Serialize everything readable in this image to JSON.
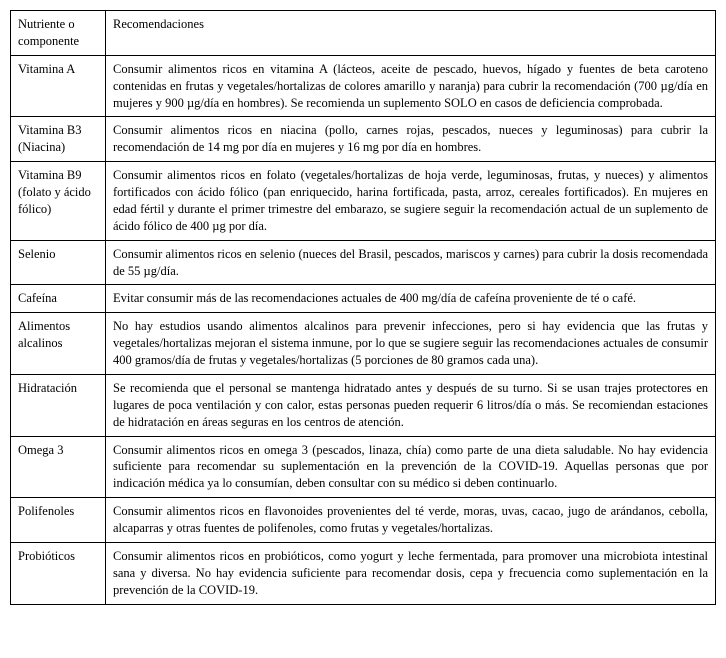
{
  "table": {
    "header": {
      "col1": "Nutriente o componente",
      "col2": "Recomendaciones"
    },
    "rows": [
      {
        "col1": "Vitamina A",
        "col2": "Consumir alimentos ricos en vitamina A (lácteos, aceite de pescado, huevos, hígado y fuentes de beta caroteno contenidas en frutas y vegetales/hortalizas de colores amarillo y naranja) para cubrir la recomendación (700 µg/día en mujeres y 900 µg/día en hombres). Se recomienda un suplemento SOLO en casos de deficiencia comprobada."
      },
      {
        "col1": "Vitamina B3 (Niacina)",
        "col2": "Consumir alimentos ricos en niacina (pollo, carnes rojas, pescados, nueces y leguminosas) para cubrir la recomendación de 14 mg por día en mujeres y 16 mg por día en hombres."
      },
      {
        "col1": "Vitamina B9 (folato y ácido fólico)",
        "col2": "Consumir alimentos ricos en folato (vegetales/hortalizas de hoja verde, leguminosas, frutas, y nueces) y alimentos fortificados con ácido fólico (pan enriquecido, harina fortificada, pasta, arroz, cereales fortificados). En mujeres en edad fértil y durante el primer trimestre del embarazo, se sugiere seguir la recomendación actual de un suplemento de ácido fólico de 400 µg por día."
      },
      {
        "col1": "Selenio",
        "col2": "Consumir alimentos ricos en selenio (nueces del Brasil, pescados, mariscos y carnes) para cubrir la dosis recomendada de 55 µg/día."
      },
      {
        "col1": "Cafeína",
        "col2": "Evitar consumir más de las recomendaciones actuales de 400 mg/día de cafeína proveniente de té o café."
      },
      {
        "col1": "Alimentos alcalinos",
        "col2": "No hay estudios usando alimentos alcalinos para prevenir infecciones, pero si hay evidencia que las frutas y vegetales/hortalizas mejoran el sistema inmune, por lo que se sugiere seguir las recomendaciones actuales de consumir 400 gramos/día de frutas y vegetales/hortalizas (5 porciones de 80 gramos cada una)."
      },
      {
        "col1": "Hidratación",
        "col2": "Se recomienda que el personal se mantenga hidratado antes y después de su turno. Si se usan trajes protectores en lugares de poca ventilación y con calor, estas personas pueden requerir 6 litros/día o más. Se recomiendan estaciones de hidratación en áreas seguras en los centros de atención."
      },
      {
        "col1": "Omega 3",
        "col2": "Consumir alimentos ricos en omega 3 (pescados, linaza, chía) como parte de una dieta saludable. No hay evidencia suficiente para recomendar su suplementación en la prevención de la COVID-19. Aquellas personas que por indicación médica ya lo consumían, deben consultar con su médico si deben continuarlo."
      },
      {
        "col1": "Polifenoles",
        "col2": "Consumir alimentos ricos en flavonoides provenientes del té verde, moras, uvas, cacao, jugo de arándanos, cebolla, alcaparras y otras fuentes de polifenoles, como frutas y vegetales/hortalizas."
      },
      {
        "col1": "Probióticos",
        "col2": "Consumir alimentos ricos en probióticos, como yogurt y leche fermentada, para promover una microbiota intestinal sana y diversa. No hay evidencia suficiente para recomendar dosis, cepa y frecuencia como suplementación en la prevención de la COVID-19."
      }
    ]
  }
}
